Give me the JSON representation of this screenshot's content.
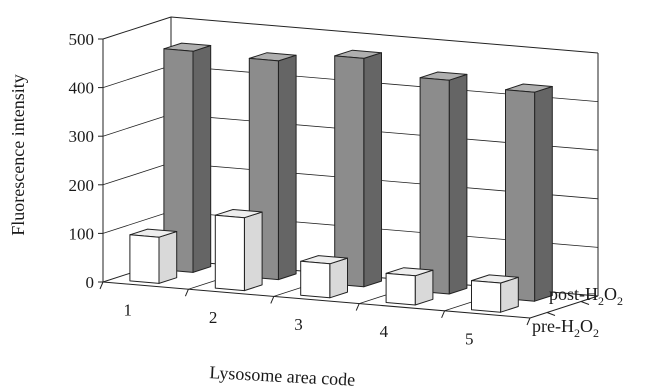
{
  "chart_data": {
    "type": "bar",
    "title": "",
    "xlabel": "Lysosome area code",
    "ylabel": "Fluorescence intensity",
    "ylim": [
      0,
      500
    ],
    "yticks": [
      "0",
      "100",
      "200",
      "300",
      "400",
      "500"
    ],
    "categories": [
      "1",
      "2",
      "3",
      "4",
      "5"
    ],
    "grid": true,
    "projection": "3d",
    "series": [
      {
        "name": "pre-H2O2",
        "label_main": "pre-H",
        "label_sub": "2",
        "label_mid": "O",
        "label_sub2": "2",
        "color": "#ffffff",
        "values": [
          95,
          150,
          70,
          60,
          60
        ]
      },
      {
        "name": "post-H2O2",
        "label_main": "post-H",
        "label_sub": "2",
        "label_mid": "O",
        "label_sub2": "2",
        "color": "#8c8c8c",
        "values": [
          455,
          450,
          470,
          440,
          430
        ]
      }
    ]
  }
}
